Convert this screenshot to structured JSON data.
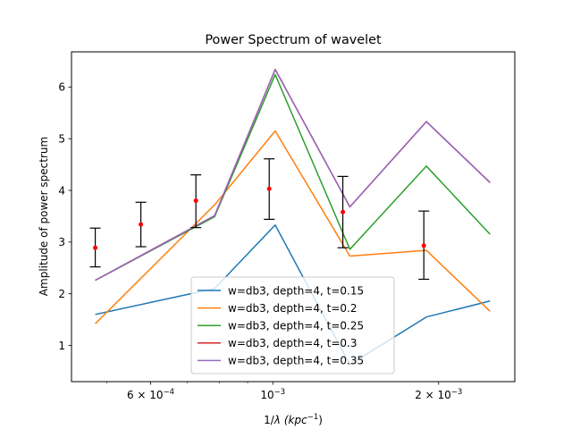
{
  "chart_data": {
    "type": "line",
    "title": "Power Spectrum of wavelet",
    "xlabel_prefix": "1/",
    "xlabel_lambda": "λ",
    "xlabel_units": "(kpc",
    "xlabel_exp": "−1",
    "xlabel_close": ")",
    "ylabel": "Amplitude of power spectrum",
    "xscale": "log",
    "xlim": [
      0.000431,
      0.00275
    ],
    "ylim": [
      0.3,
      6.68
    ],
    "grid": false,
    "legend_position": "lower center",
    "x_ticks": [
      {
        "value": 0.0006,
        "mantissa": "6 × 10",
        "exp": "−4"
      },
      {
        "value": 0.001,
        "mantissa": "10",
        "exp": "−3"
      },
      {
        "value": 0.002,
        "mantissa": "2 × 10",
        "exp": "−3"
      }
    ],
    "y_ticks": [
      1,
      2,
      3,
      4,
      5,
      6
    ],
    "series": [
      {
        "name": "w=db3, depth=4, t=0.15",
        "color": "#1f77b4",
        "x": [
          0.000476,
          0.000784,
          0.00101,
          0.00138,
          0.0019,
          0.00248
        ],
        "y": [
          1.6,
          2.1,
          3.33,
          0.63,
          1.55,
          1.86
        ]
      },
      {
        "name": "w=db3, depth=4, t=0.2",
        "color": "#ff7f0e",
        "x": [
          0.000476,
          0.000784,
          0.00101,
          0.00138,
          0.0019,
          0.00248
        ],
        "y": [
          1.42,
          3.72,
          5.15,
          2.73,
          2.84,
          1.66
        ]
      },
      {
        "name": "w=db3, depth=4, t=0.25",
        "color": "#2ca02c",
        "x": [
          0.000476,
          0.000784,
          0.00101,
          0.00138,
          0.0019,
          0.00248
        ],
        "y": [
          2.26,
          3.49,
          6.24,
          2.86,
          4.47,
          3.15
        ]
      },
      {
        "name": "w=db3, depth=4, t=0.3",
        "color": "#d62728",
        "x": [
          0.000476,
          0.000784,
          0.00101,
          0.00138,
          0.0019,
          0.00248
        ],
        "y": [
          2.26,
          3.51,
          6.34,
          3.68,
          5.33,
          4.15
        ]
      },
      {
        "name": "w=db3, depth=4, t=0.35",
        "color": "#9467bd",
        "x": [
          0.000476,
          0.000784,
          0.00101,
          0.00138,
          0.0019,
          0.00248
        ],
        "y": [
          2.26,
          3.51,
          6.34,
          3.68,
          5.33,
          4.15
        ]
      }
    ],
    "errorbars": {
      "color": "#000000",
      "marker_color": "#ff0000",
      "points": [
        {
          "x": 0.000476,
          "y": 2.89,
          "lo": 2.52,
          "hi": 3.27
        },
        {
          "x": 0.000576,
          "y": 3.34,
          "lo": 2.91,
          "hi": 3.77
        },
        {
          "x": 0.000725,
          "y": 3.8,
          "lo": 3.28,
          "hi": 4.3
        },
        {
          "x": 0.000985,
          "y": 4.03,
          "lo": 3.44,
          "hi": 4.61
        },
        {
          "x": 0.00134,
          "y": 3.58,
          "lo": 2.89,
          "hi": 4.27
        },
        {
          "x": 0.00188,
          "y": 2.93,
          "lo": 2.28,
          "hi": 3.6
        }
      ]
    }
  }
}
